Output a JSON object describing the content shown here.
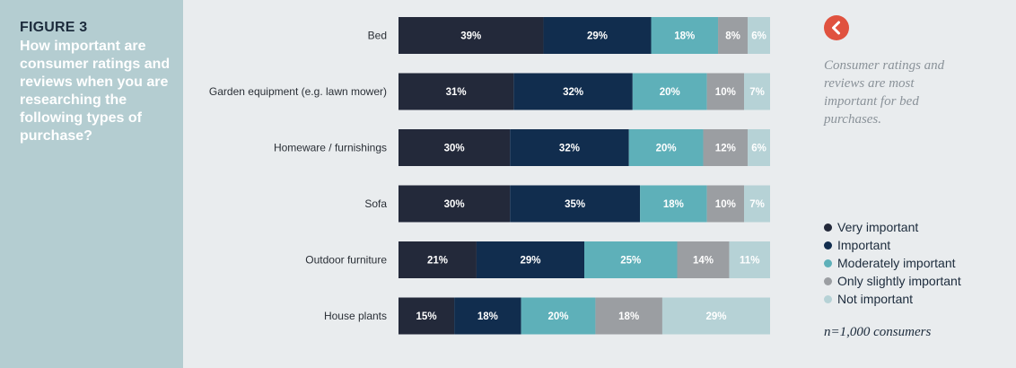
{
  "figure": {
    "label": "FIGURE 3",
    "title": "How important are consumer ratings and reviews when you are researching the following types of purchase?"
  },
  "note": "Consumer ratings and reviews are most important for bed purchases.",
  "sample": "n=1,000 consumers",
  "back_button_icon": "chevron-left-icon",
  "colors": {
    "panel": "#b4cdd1",
    "accent": "#e0523f"
  },
  "chart_data": {
    "type": "bar",
    "orientation": "horizontal",
    "stacked": true,
    "categories": [
      "Bed",
      "Garden equipment (e.g. lawn mower)",
      "Homeware / furnishings",
      "Sofa",
      "Outdoor furniture",
      "House plants"
    ],
    "series": [
      {
        "name": "Very important",
        "color": "#23293a",
        "label_color": "#ffffff",
        "values": [
          39,
          31,
          30,
          30,
          21,
          15
        ],
        "labels": [
          "39%",
          "31%",
          "30%",
          "30%",
          "21%",
          "15%"
        ]
      },
      {
        "name": "Important",
        "color": "#112d4e",
        "label_color": "#ffffff",
        "values": [
          29,
          32,
          32,
          35,
          29,
          18
        ],
        "labels": [
          "29%",
          "32%",
          "32%",
          "35%",
          "29%",
          "18%"
        ]
      },
      {
        "name": "Moderately important",
        "color": "#5eb0b9",
        "label_color": "#ffffff",
        "values": [
          18,
          20,
          20,
          18,
          25,
          20
        ],
        "labels": [
          "18%",
          "20%",
          "20%",
          "18%",
          "25%",
          "20%"
        ]
      },
      {
        "name": "Only slightly important",
        "color": "#9b9ea2",
        "label_color": "#ffffff",
        "values": [
          8,
          10,
          12,
          10,
          14,
          18
        ],
        "labels": [
          "8%",
          "10%",
          "12%",
          "10%",
          "14%",
          "18%"
        ]
      },
      {
        "name": "Not important",
        "color": "#b6d2d6",
        "label_color": "#ffffff",
        "values": [
          6,
          7,
          6,
          7,
          11,
          29
        ],
        "labels": [
          "6%",
          "7%",
          "6%",
          "7%",
          "11%",
          "29%"
        ]
      }
    ],
    "legend_position": "right",
    "grid": false
  }
}
